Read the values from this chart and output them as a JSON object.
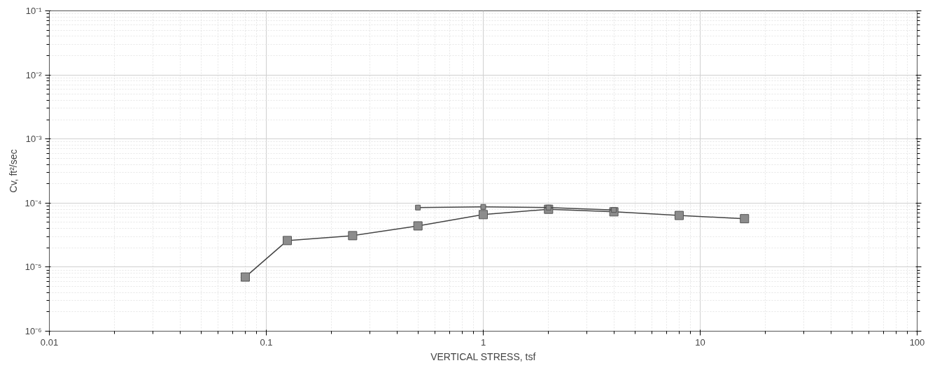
{
  "chart_data": {
    "type": "line",
    "xlabel": "VERTICAL STRESS, tsf",
    "ylabel": "Cv, ft²/sec",
    "log": "xy",
    "grid": true,
    "marker": "square",
    "line_style": "solid",
    "xlim": [
      0.01,
      100
    ],
    "xticks": [
      0.01,
      0.1,
      1,
      10,
      100
    ],
    "ylim": [
      1e-06,
      0.1
    ],
    "yticks": [
      {
        "value": 1e-06,
        "label": "10⁻⁶"
      },
      {
        "value": 1e-05,
        "label": "10⁻⁵"
      },
      {
        "value": 0.0001,
        "label": "10⁻⁴"
      },
      {
        "value": 0.001,
        "label": "10⁻³"
      },
      {
        "value": 0.01,
        "label": "10⁻²"
      },
      {
        "value": 0.1,
        "label": "10⁻¹"
      }
    ],
    "series": [
      {
        "color": "#8c8c8c",
        "x": [
          0.08,
          0.125,
          0.25,
          0.5,
          1,
          2,
          4,
          8,
          16
        ],
        "values": [
          7e-06,
          2.6e-05,
          3.1e-05,
          4.4e-05,
          6.6e-05,
          8e-05,
          7.3e-05,
          6.4e-05,
          5.7e-05
        ]
      },
      {
        "color": "#8c8c8c",
        "x": [
          4,
          2,
          1,
          0.5
        ],
        "values": [
          7.8e-05,
          8.5e-05,
          8.7e-05,
          8.5e-05
        ]
      }
    ]
  }
}
